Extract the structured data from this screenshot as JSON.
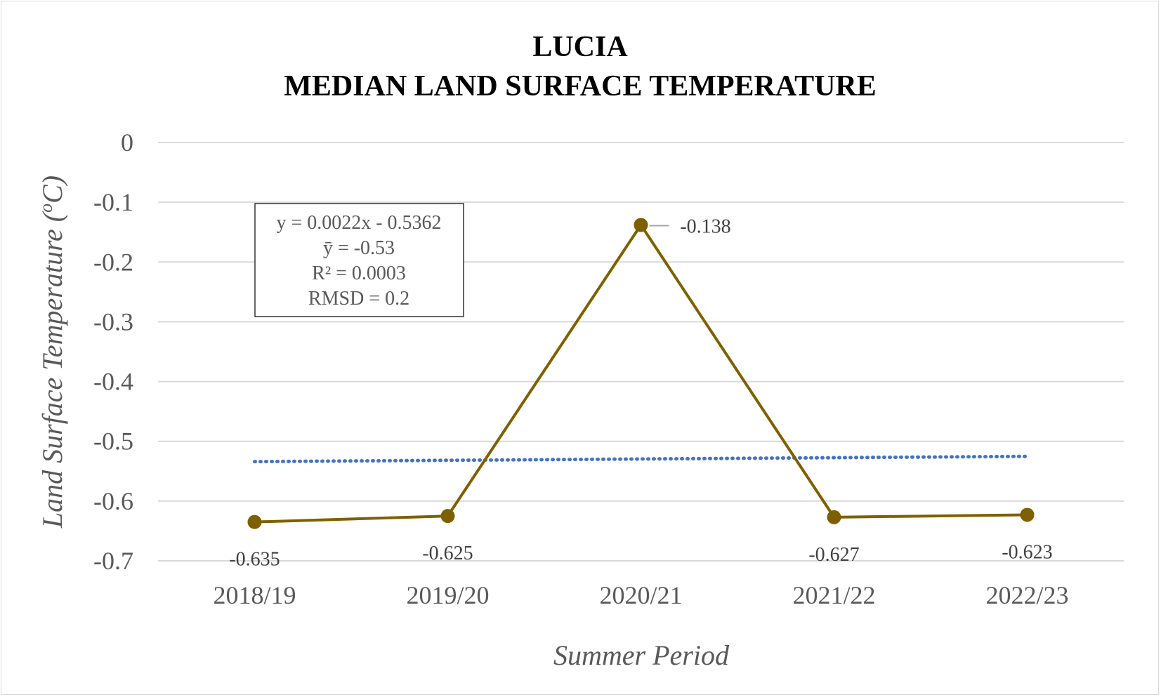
{
  "chart_data": {
    "type": "line",
    "title": [
      "LUCIA",
      "MEDIAN LAND SURFACE TEMPERATURE"
    ],
    "xlabel": "Summer Period",
    "ylabel_main": "Land Surface Temperature (",
    "ylabel_sup": "o",
    "ylabel_end": "C)",
    "categories": [
      "2018/19",
      "2019/20",
      "2020/21",
      "2021/22",
      "2022/23"
    ],
    "series": [
      {
        "values": [
          -0.635,
          -0.625,
          -0.138,
          -0.627,
          -0.623
        ],
        "data_labels": [
          "-0.635",
          "-0.625",
          "-0.138",
          "-0.627",
          "-0.623"
        ],
        "color": "#7f6000",
        "marker": "circle"
      }
    ],
    "trendline": {
      "type": "linear",
      "start": -0.534,
      "end": -0.5252,
      "color": "#4472c4",
      "style": "dotted"
    },
    "yticks": [
      0,
      -0.1,
      -0.2,
      -0.3,
      -0.4,
      -0.5,
      -0.6,
      -0.7
    ],
    "ytick_labels": [
      "0",
      "-0.1",
      "-0.2",
      "-0.3",
      "-0.4",
      "-0.5",
      "-0.6",
      "-0.7"
    ],
    "ylim": [
      -0.7,
      0
    ],
    "grid": true,
    "annotation": {
      "lines": [
        "y = 0.0022x - 0.5362",
        "ȳ = -0.53",
        "R² = 0.0003",
        "RMSD = 0.2"
      ]
    }
  }
}
